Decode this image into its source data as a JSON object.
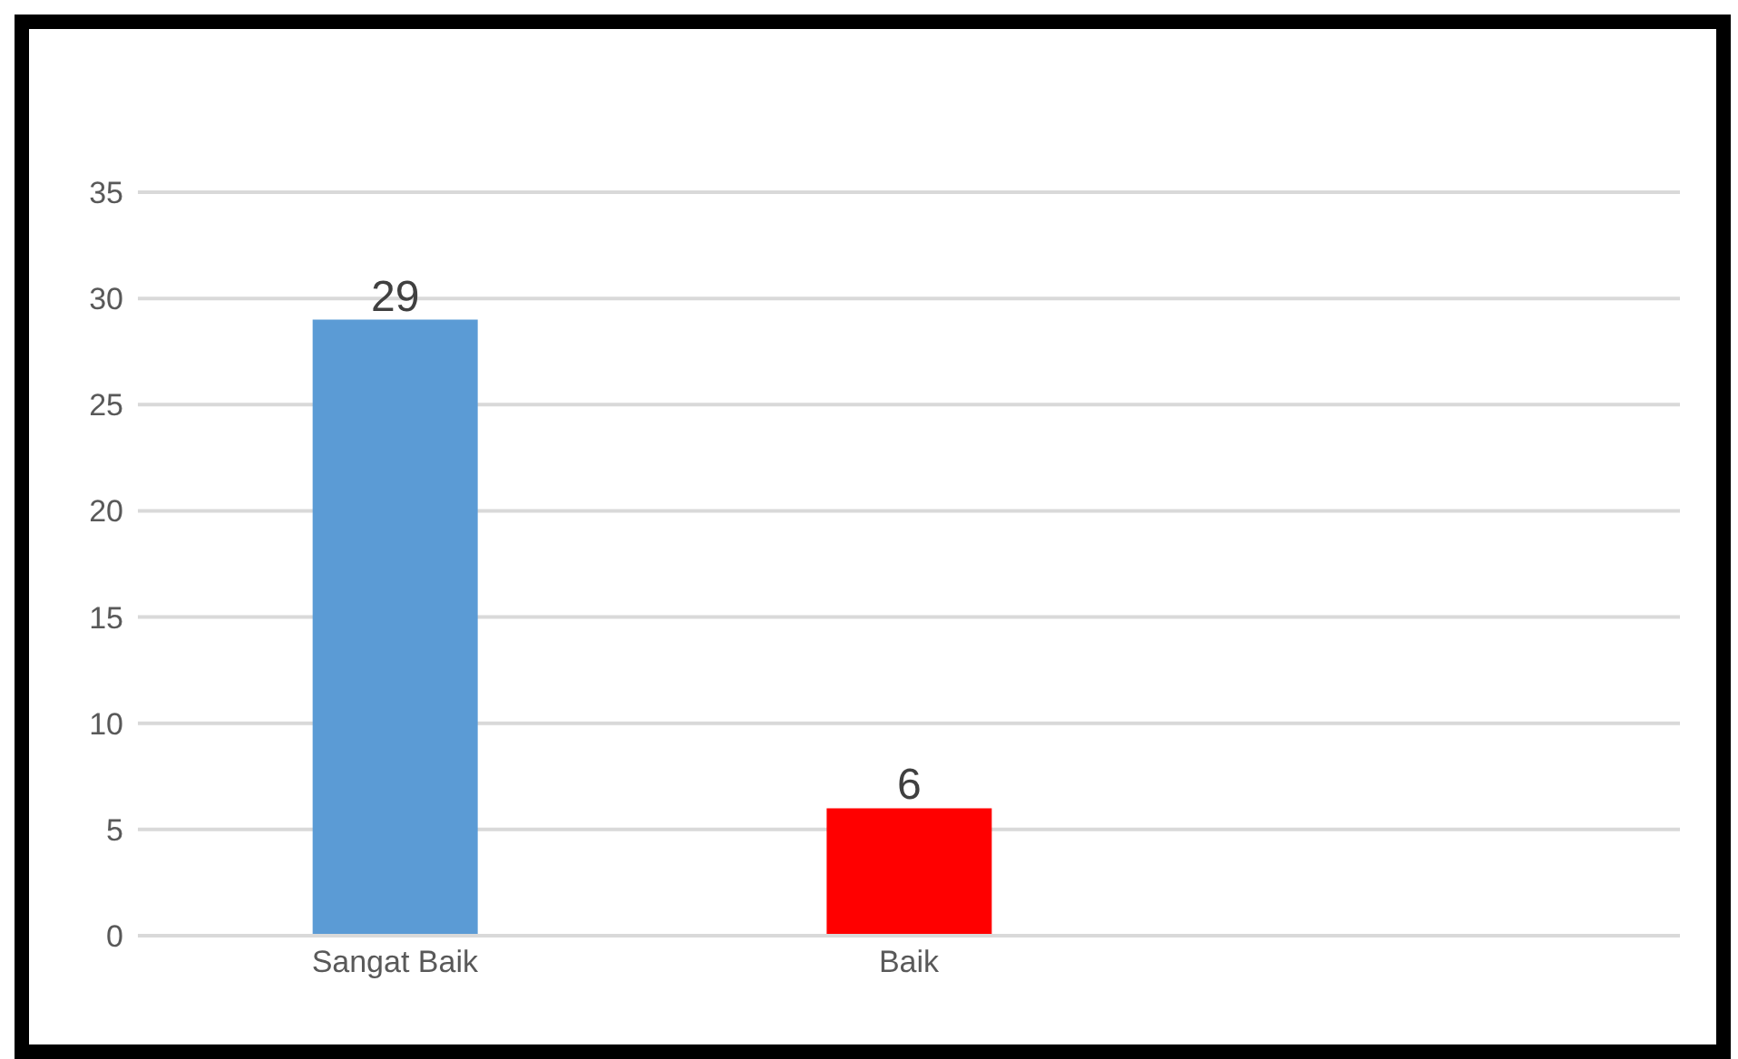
{
  "chart_data": {
    "type": "bar",
    "categories": [
      "Sangat Baik",
      "Baik",
      null
    ],
    "values": [
      29,
      6,
      null
    ],
    "colors": [
      "#5b9bd5",
      "#ff0000",
      "#a5a5a5"
    ],
    "ylim": [
      0,
      35
    ],
    "yticks": [
      0,
      5,
      10,
      15,
      20,
      25,
      30,
      35
    ],
    "grid": "y",
    "data_labels": true
  }
}
